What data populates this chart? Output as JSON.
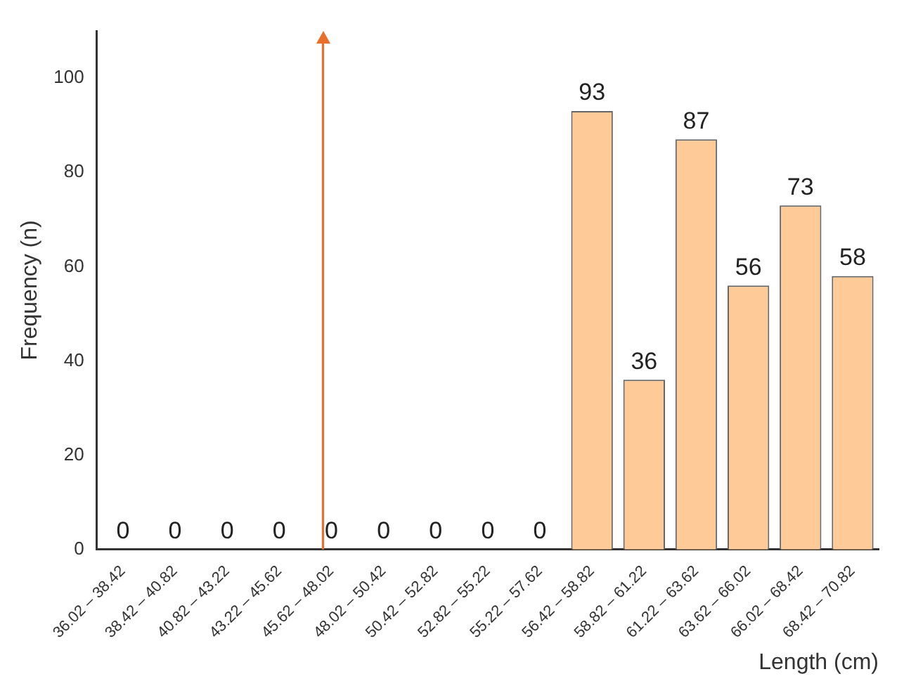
{
  "chart_data": {
    "type": "bar",
    "xlabel": "Length (cm)",
    "ylabel": "Frequency (n)",
    "categories": [
      "36.02 – 38.42",
      "38.42 – 40.82",
      "40.82 – 43.22",
      "43.22 – 45.62",
      "45.62 – 48.02",
      "48.02 – 50.42",
      "50.42 – 52.82",
      "52.82 – 55.22",
      "55.22 – 57.62",
      "56.42 – 58.82",
      "58.82 – 61.22",
      "61.22 – 63.62",
      "63.62 – 66.02",
      "66.02 – 68.42",
      "68.42 – 70.82"
    ],
    "values": [
      0,
      0,
      0,
      0,
      0,
      0,
      0,
      0,
      0,
      93,
      36,
      87,
      56,
      73,
      58
    ],
    "color": "#fdca98",
    "ref_lines": [
      {
        "axis": "x",
        "value": "45.62 – 48.02",
        "color": "#e8702a"
      }
    ],
    "ylim": [
      0,
      110
    ],
    "yticks": [
      0,
      20,
      40,
      60,
      80,
      100
    ],
    "grid": false,
    "legend": false,
    "data_labels": true
  }
}
